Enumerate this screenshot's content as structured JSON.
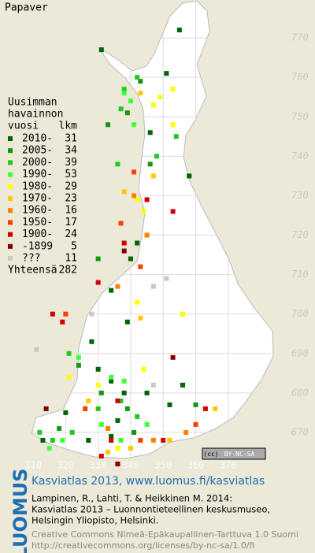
{
  "title": "Papaver",
  "map": {
    "xlim": [
      299.8,
      396.7
    ],
    "ylim": [
      661.8,
      779.6
    ],
    "xticks": [
      310,
      320,
      330,
      340,
      350,
      360,
      370
    ],
    "yticks": [
      770,
      760,
      750,
      740,
      730,
      720,
      710,
      700,
      690,
      680,
      670
    ]
  },
  "legend": {
    "heading": [
      "Uusimman",
      "havainnon",
      "vuosi"
    ],
    "count_heading": "lkm",
    "entries": [
      {
        "label": "2010-",
        "count": 31,
        "color": "#006400",
        "points": [
          [
            331,
            767
          ],
          [
            355,
            772
          ],
          [
            351,
            761
          ],
          [
            346,
            746
          ],
          [
            358,
            735
          ],
          [
            342,
            718
          ],
          [
            340,
            714
          ],
          [
            334,
            706
          ],
          [
            339,
            698
          ],
          [
            328,
            693
          ],
          [
            330,
            686
          ],
          [
            334,
            683
          ],
          [
            338,
            680
          ],
          [
            345,
            680
          ],
          [
            352,
            677
          ],
          [
            320,
            675
          ],
          [
            327,
            668
          ],
          [
            334,
            669
          ],
          [
            356,
            682
          ],
          [
            313,
            668
          ],
          [
            336,
            673
          ]
        ]
      },
      {
        "label": "2005-",
        "count": 34,
        "color": "#149614",
        "points": [
          [
            343,
            759
          ],
          [
            339,
            751
          ],
          [
            333,
            748
          ],
          [
            346,
            738
          ],
          [
            330,
            714
          ],
          [
            324,
            687
          ],
          [
            331,
            680
          ],
          [
            339,
            676
          ],
          [
            341,
            670
          ],
          [
            318,
            671
          ],
          [
            360,
            677
          ]
        ]
      },
      {
        "label": "2000-",
        "count": 39,
        "color": "#22c822",
        "points": [
          [
            342,
            760
          ],
          [
            338,
            757
          ],
          [
            337,
            752
          ],
          [
            354,
            745
          ],
          [
            348,
            740
          ],
          [
            336,
            738
          ],
          [
            321,
            690
          ],
          [
            330,
            676
          ],
          [
            337,
            678
          ],
          [
            342,
            674
          ],
          [
            316,
            668
          ],
          [
            322,
            670
          ],
          [
            312,
            670
          ]
        ]
      },
      {
        "label": "1990-",
        "count": 53,
        "color": "#40ff40",
        "points": [
          [
            338,
            756
          ],
          [
            340,
            754
          ],
          [
            341,
            748
          ],
          [
            324,
            689
          ],
          [
            334,
            684
          ],
          [
            338,
            683
          ],
          [
            331,
            672
          ],
          [
            337,
            668
          ],
          [
            319,
            668
          ],
          [
            326,
            676
          ],
          [
            345,
            672
          ],
          [
            315,
            666
          ]
        ]
      },
      {
        "label": "1980-",
        "count": 29,
        "color": "#ffff00",
        "points": [
          [
            347,
            753
          ],
          [
            349,
            755
          ],
          [
            353,
            757
          ],
          [
            353,
            748
          ],
          [
            342,
            729
          ],
          [
            344,
            726
          ],
          [
            342,
            703
          ],
          [
            321,
            684
          ],
          [
            330,
            682
          ],
          [
            344,
            686
          ],
          [
            336,
            666
          ],
          [
            356,
            700
          ]
        ]
      },
      {
        "label": "1970-",
        "count": 23,
        "color": "#ffc800",
        "points": [
          [
            343,
            756
          ],
          [
            347,
            735
          ],
          [
            338,
            731
          ],
          [
            343,
            699
          ],
          [
            327,
            678
          ],
          [
            333,
            665
          ],
          [
            340,
            666
          ],
          [
            352,
            668
          ],
          [
            366,
            676
          ]
        ]
      },
      {
        "label": "1960-",
        "count": 16,
        "color": "#ff8000",
        "points": [
          [
            341,
            730
          ],
          [
            345,
            720
          ],
          [
            336,
            707
          ],
          [
            347,
            668
          ],
          [
            333,
            671
          ],
          [
            357,
            670
          ]
        ]
      },
      {
        "label": "1950-",
        "count": 17,
        "color": "#ff3c00",
        "points": [
          [
            341,
            736
          ],
          [
            337,
            723
          ],
          [
            343,
            712
          ],
          [
            320,
            700
          ],
          [
            326,
            676
          ],
          [
            343,
            668
          ],
          [
            360,
            672
          ]
        ]
      },
      {
        "label": "1900-",
        "count": 24,
        "color": "#d20000",
        "points": [
          [
            345,
            729
          ],
          [
            353,
            726
          ],
          [
            338,
            718
          ],
          [
            330,
            708
          ],
          [
            316,
            700
          ],
          [
            319,
            698
          ],
          [
            336,
            678
          ],
          [
            334,
            668
          ],
          [
            331,
            664
          ],
          [
            350,
            668
          ],
          [
            363,
            676
          ]
        ]
      },
      {
        "label": "-1899",
        "count": 5,
        "color": "#800000",
        "points": [
          [
            338,
            716
          ],
          [
            353,
            689
          ],
          [
            314,
            676
          ],
          [
            336,
            662
          ]
        ]
      },
      {
        "label": "???",
        "count": 11,
        "color": "#c8c8c8",
        "points": [
          [
            328,
            700
          ],
          [
            351,
            709
          ],
          [
            347,
            707
          ],
          [
            311,
            691
          ],
          [
            347,
            682
          ]
        ]
      }
    ],
    "total_label": "Yhteensä",
    "total": 282
  },
  "badge": {
    "cc": "(cc)",
    "license": "BY-NC-SA"
  },
  "footer": {
    "logo": "LUOMUS",
    "title": "Kasviatlas 2013, www.luomus.fi/kasviatlas",
    "citation": [
      "Lampinen, R., Lahti, T. & Heikkinen M. 2014:",
      "Kasviatlas 2013 – Luonnontieteellinen keskusmuseo,",
      "Helsingin Yliopisto, Helsinki."
    ],
    "license": [
      "Creative Commons Nimeä-Epäkaupallinen-Tarttuva 1.0 Suomi",
      "http://creativecommons.org/licenses/by-nc-sa/1.0/fi"
    ]
  }
}
